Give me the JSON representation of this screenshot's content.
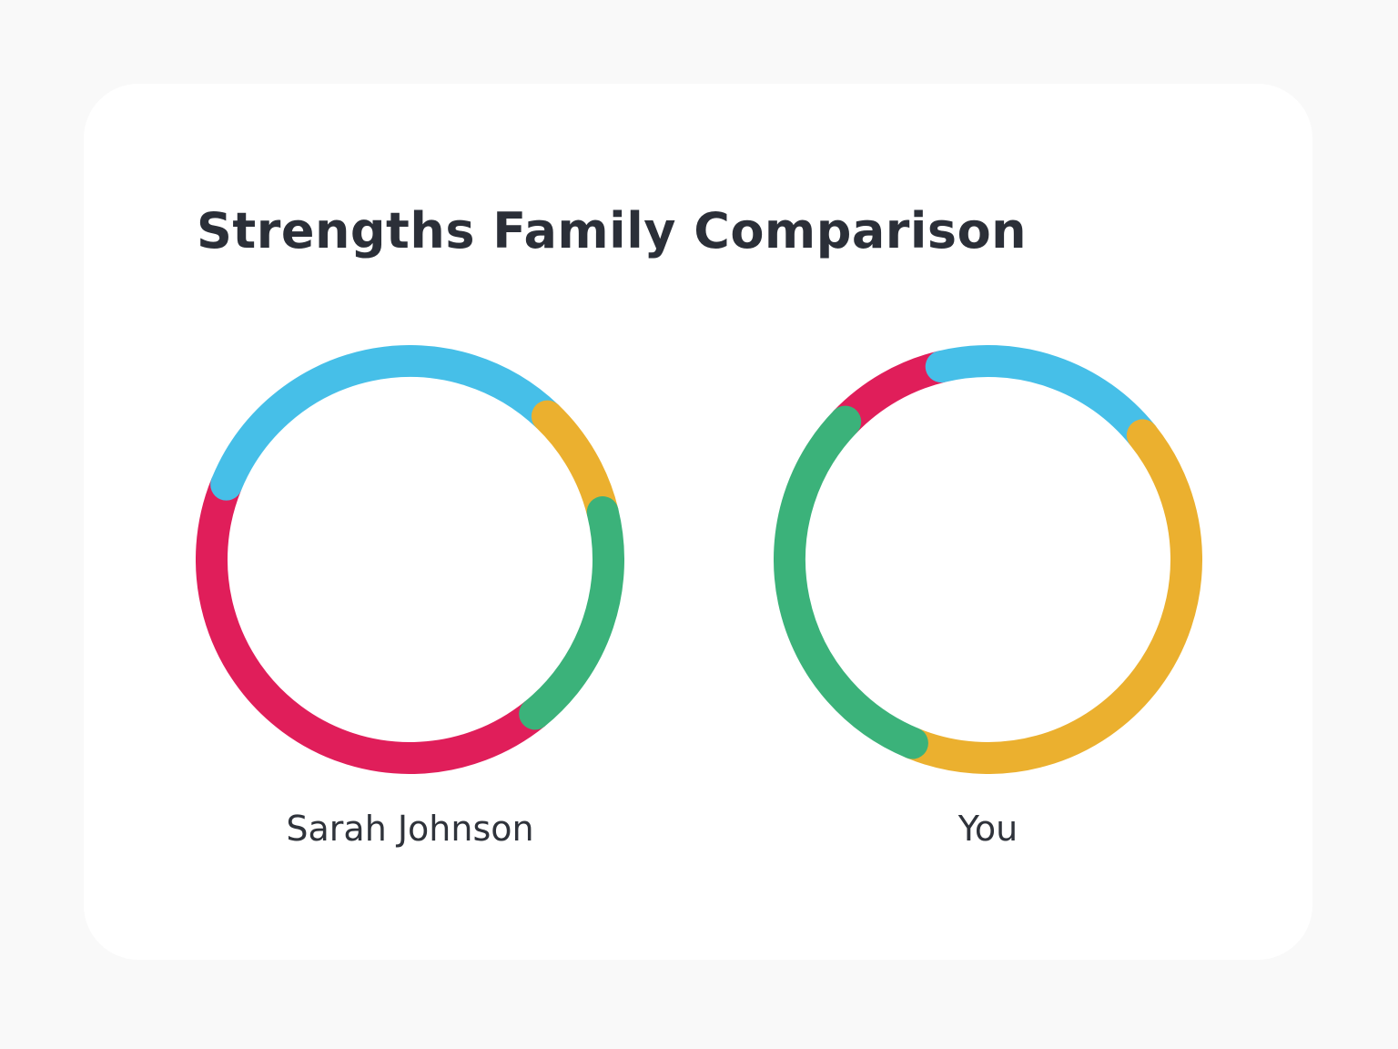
{
  "title": "Strengths Family Comparison",
  "chart_data": [
    {
      "type": "donut",
      "title": "Sarah Johnson",
      "values": [
        42,
        31,
        9,
        18
      ],
      "colors": [
        "#e01e5a",
        "#46bfe8",
        "#ebb02f",
        "#3bb27a"
      ]
    },
    {
      "type": "donut",
      "title": "You",
      "values": [
        9,
        18,
        42,
        31
      ],
      "colors": [
        "#e01e5a",
        "#46bfe8",
        "#ebb02f",
        "#3bb27a"
      ]
    }
  ]
}
